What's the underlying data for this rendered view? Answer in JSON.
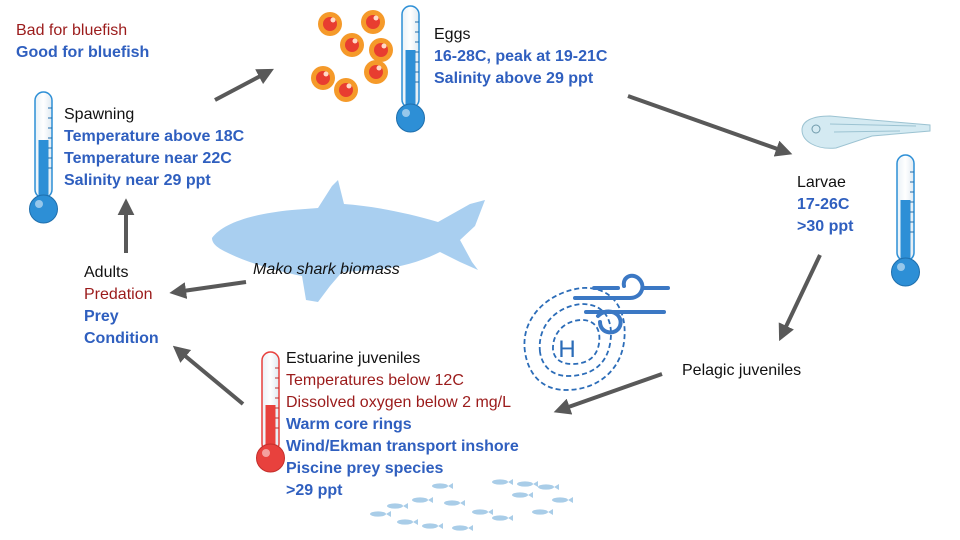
{
  "legend": {
    "bad_label": "Bad for bluefish",
    "good_label": "Good for bluefish",
    "bad_color": "#9b1b1b",
    "good_color": "#2f5fbf"
  },
  "stages": {
    "spawning": {
      "title": "Spawning",
      "bad": [],
      "good": [
        "Temperature above 18C",
        "Temperature near 22C",
        "Salinity near 29 ppt"
      ]
    },
    "eggs": {
      "title": "Eggs",
      "bad": [],
      "good": [
        "16-28C, peak at 19-21C",
        "Salinity above 29 ppt"
      ]
    },
    "larvae": {
      "title": "Larvae",
      "bad": [],
      "good": [
        "17-26C",
        ">30 ppt"
      ]
    },
    "pelagic_juveniles": {
      "title": "Pelagic juveniles",
      "bad": [],
      "good": []
    },
    "estuarine_juveniles": {
      "title": "Estuarine juveniles",
      "bad": [
        "Temperatures below 12C",
        "Dissolved oxygen below 2 mg/L"
      ],
      "good": [
        "Warm core rings",
        "Wind/Ekman transport inshore",
        "Piscine prey species",
        ">29 ppt"
      ]
    },
    "adults": {
      "title": "Adults",
      "bad": [
        "Predation"
      ],
      "good": [
        "Prey",
        "Condition"
      ]
    }
  },
  "shark_caption": "Mako shark biomass",
  "high_pressure_symbol": "H",
  "icons": [
    "thermometer-icon",
    "fish-eggs-icon",
    "larva-icon",
    "shark-icon",
    "wind-icon",
    "high-pressure-icon",
    "fish-school-icon"
  ],
  "colors": {
    "arrow": "#595959",
    "thermo_blue": "#2d8fd6",
    "thermo_red": "#e8413d",
    "shark": "#a9cff0",
    "egg_orange": "#f59a2a",
    "egg_red": "#e83d30"
  }
}
